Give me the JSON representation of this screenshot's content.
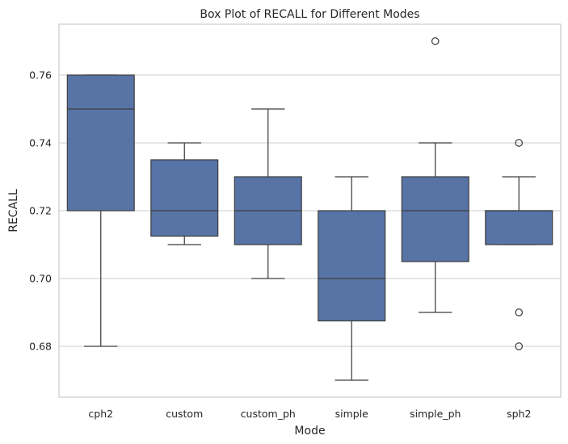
{
  "chart_data": {
    "type": "box",
    "title": "Box Plot of RECALL for Different Modes",
    "xlabel": "Mode",
    "ylabel": "RECALL",
    "ylim": [
      0.665,
      0.775
    ],
    "yticks": [
      0.68,
      0.7,
      0.72,
      0.74,
      0.76
    ],
    "ytick_labels": [
      "0.68",
      "0.70",
      "0.72",
      "0.74",
      "0.76"
    ],
    "grid": true,
    "color": "#5874a7",
    "categories": [
      "cph2",
      "custom",
      "custom_ph",
      "simple",
      "simple_ph",
      "sph2"
    ],
    "boxes": [
      {
        "category": "cph2",
        "whisker_low": 0.68,
        "q1": 0.72,
        "median": 0.75,
        "q3": 0.76,
        "whisker_high": 0.76,
        "outliers": []
      },
      {
        "category": "custom",
        "whisker_low": 0.71,
        "q1": 0.7125,
        "median": 0.72,
        "q3": 0.735,
        "whisker_high": 0.74,
        "outliers": []
      },
      {
        "category": "custom_ph",
        "whisker_low": 0.7,
        "q1": 0.71,
        "median": 0.72,
        "q3": 0.73,
        "whisker_high": 0.75,
        "outliers": []
      },
      {
        "category": "simple",
        "whisker_low": 0.67,
        "q1": 0.6875,
        "median": 0.7,
        "q3": 0.72,
        "whisker_high": 0.73,
        "outliers": []
      },
      {
        "category": "simple_ph",
        "whisker_low": 0.69,
        "q1": 0.705,
        "median": 0.72,
        "q3": 0.73,
        "whisker_high": 0.74,
        "outliers": [
          0.77
        ]
      },
      {
        "category": "sph2",
        "whisker_low": 0.71,
        "q1": 0.71,
        "median": 0.72,
        "q3": 0.72,
        "whisker_high": 0.73,
        "outliers": [
          0.74,
          0.69,
          0.68
        ]
      }
    ]
  }
}
